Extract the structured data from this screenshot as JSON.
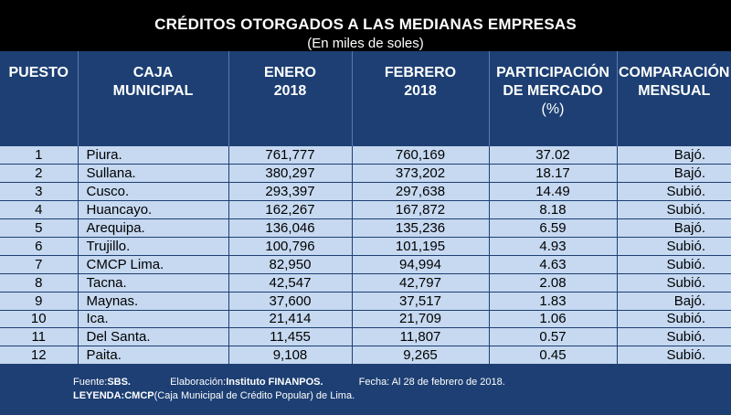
{
  "header": {
    "title": "CRÉDITOS OTORGADOS A LAS MEDIANAS EMPRESAS",
    "subtitle": "(En miles de soles)"
  },
  "columns": {
    "puesto": "PUESTO",
    "caja_l1": "CAJA",
    "caja_l2": "MUNICIPAL",
    "enero_l1": "ENERO",
    "enero_l2": "2018",
    "febrero_l1": "FEBRERO",
    "febrero_l2": "2018",
    "part_l1": "PARTICIPACIÓN",
    "part_l2": "DE MERCADO",
    "part_l3": "(%)",
    "comp_l1": "COMPARACIÓN",
    "comp_l2": "MENSUAL"
  },
  "rows": [
    {
      "puesto": "1",
      "caja": "Piura.",
      "enero": "761,777",
      "febrero": "760,169",
      "part": "37.02",
      "comp": "Bajó."
    },
    {
      "puesto": "2",
      "caja": "Sullana.",
      "enero": "380,297",
      "febrero": "373,202",
      "part": "18.17",
      "comp": "Bajó."
    },
    {
      "puesto": "3",
      "caja": "Cusco.",
      "enero": "293,397",
      "febrero": "297,638",
      "part": "14.49",
      "comp": "Subió."
    },
    {
      "puesto": "4",
      "caja": "Huancayo.",
      "enero": "162,267",
      "febrero": "167,872",
      "part": "8.18",
      "comp": "Subió."
    },
    {
      "puesto": "5",
      "caja": "Arequipa.",
      "enero": "136,046",
      "febrero": "135,236",
      "part": "6.59",
      "comp": "Bajó."
    },
    {
      "puesto": "6",
      "caja": "Trujillo.",
      "enero": "100,796",
      "febrero": "101,195",
      "part": "4.93",
      "comp": "Subió."
    },
    {
      "puesto": "7",
      "caja": "CMCP Lima.",
      "enero": "82,950",
      "febrero": "94,994",
      "part": "4.63",
      "comp": "Subió."
    },
    {
      "puesto": "8",
      "caja": "Tacna.",
      "enero": "42,547",
      "febrero": "42,797",
      "part": "2.08",
      "comp": "Subió."
    },
    {
      "puesto": "9",
      "caja": "Maynas.",
      "enero": "37,600",
      "febrero": "37,517",
      "part": "1.83",
      "comp": "Bajó."
    },
    {
      "puesto": "10",
      "caja": "Ica.",
      "enero": "21,414",
      "febrero": "21,709",
      "part": "1.06",
      "comp": "Subió."
    },
    {
      "puesto": "11",
      "caja": "Del Santa.",
      "enero": "11,455",
      "febrero": "11,807",
      "part": "0.57",
      "comp": "Subió."
    },
    {
      "puesto": "12",
      "caja": "Paita.",
      "enero": "9,108",
      "febrero": "9,265",
      "part": "0.45",
      "comp": "Subió."
    }
  ],
  "footer": {
    "fuente_label": "Fuente: ",
    "fuente_value": "SBS.",
    "elab_label": "Elaboración: ",
    "elab_value": "Instituto FINANPOS.",
    "fecha": "Fecha: Al 28 de febrero de 2018.",
    "leyenda_label": "LEYENDA: ",
    "leyenda_abbr": "CMCP",
    "leyenda_text": " (Caja Municipal de Crédito Popular) de Lima."
  },
  "colors": {
    "header_bg": "#000000",
    "table_header_bg": "#1d3f73",
    "cell_bg": "#c6d9f1"
  }
}
